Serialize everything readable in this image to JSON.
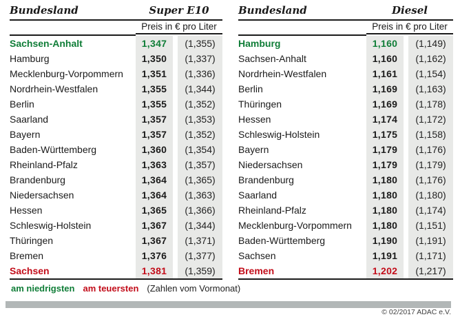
{
  "chart_data": [
    {
      "type": "table",
      "land_header": "Bundesland",
      "fuel": "Super E10",
      "unit_header": "Preis in € pro Liter",
      "rows": [
        {
          "land": "Sachsen-Anhalt",
          "price": "1,347",
          "prev": "(1,355)",
          "mark": "lowest"
        },
        {
          "land": "Hamburg",
          "price": "1,350",
          "prev": "(1,337)"
        },
        {
          "land": "Mecklenburg-Vorpommern",
          "price": "1,351",
          "prev": "(1,336)"
        },
        {
          "land": "Nordrhein-Westfalen",
          "price": "1,355",
          "prev": "(1,344)"
        },
        {
          "land": "Berlin",
          "price": "1,355",
          "prev": "(1,352)"
        },
        {
          "land": "Saarland",
          "price": "1,357",
          "prev": "(1,353)"
        },
        {
          "land": "Bayern",
          "price": "1,357",
          "prev": "(1,352)"
        },
        {
          "land": "Baden-Württemberg",
          "price": "1,360",
          "prev": "(1,354)"
        },
        {
          "land": "Rheinland-Pfalz",
          "price": "1,363",
          "prev": "(1,357)"
        },
        {
          "land": "Brandenburg",
          "price": "1,364",
          "prev": "(1,365)"
        },
        {
          "land": "Niedersachsen",
          "price": "1,364",
          "prev": "(1,363)"
        },
        {
          "land": "Hessen",
          "price": "1,365",
          "prev": "(1,366)"
        },
        {
          "land": "Schleswig-Holstein",
          "price": "1,367",
          "prev": "(1,344)"
        },
        {
          "land": "Thüringen",
          "price": "1,367",
          "prev": "(1,371)"
        },
        {
          "land": "Bremen",
          "price": "1,376",
          "prev": "(1,377)"
        },
        {
          "land": "Sachsen",
          "price": "1,381",
          "prev": "(1,359)",
          "mark": "highest"
        }
      ]
    },
    {
      "type": "table",
      "land_header": "Bundesland",
      "fuel": "Diesel",
      "unit_header": "Preis in € pro Liter",
      "rows": [
        {
          "land": "Hamburg",
          "price": "1,160",
          "prev": "(1,149)",
          "mark": "lowest"
        },
        {
          "land": "Sachsen-Anhalt",
          "price": "1,160",
          "prev": "(1,162)"
        },
        {
          "land": "Nordrhein-Westfalen",
          "price": "1,161",
          "prev": "(1,154)"
        },
        {
          "land": "Berlin",
          "price": "1,169",
          "prev": "(1,163)"
        },
        {
          "land": "Thüringen",
          "price": "1,169",
          "prev": "(1,178)"
        },
        {
          "land": "Hessen",
          "price": "1,174",
          "prev": "(1,172)"
        },
        {
          "land": "Schleswig-Holstein",
          "price": "1,175",
          "prev": "(1,158)"
        },
        {
          "land": "Bayern",
          "price": "1,179",
          "prev": "(1,176)"
        },
        {
          "land": "Niedersachsen",
          "price": "1,179",
          "prev": "(1,179)"
        },
        {
          "land": "Brandenburg",
          "price": "1,180",
          "prev": "(1,176)"
        },
        {
          "land": "Saarland",
          "price": "1,180",
          "prev": "(1,180)"
        },
        {
          "land": "Rheinland-Pfalz",
          "price": "1,180",
          "prev": "(1,174)"
        },
        {
          "land": "Mecklenburg-Vorpommern",
          "price": "1,180",
          "prev": "(1,151)"
        },
        {
          "land": "Baden-Württemberg",
          "price": "1,190",
          "prev": "(1,191)"
        },
        {
          "land": "Sachsen",
          "price": "1,191",
          "prev": "(1,171)"
        },
        {
          "land": "Bremen",
          "price": "1,202",
          "prev": "(1,217)",
          "mark": "highest"
        }
      ]
    }
  ],
  "legend": {
    "lowest_label": "am niedrigsten",
    "highest_label": "am teuersten",
    "note": "(Zahlen vom Vormonat)"
  },
  "footer": {
    "copyright": "© 02/2017 ADAC e.V."
  },
  "colors": {
    "green": "#0f7d37",
    "red": "#c20d1a",
    "column_band": "#e8e9e7",
    "footer_bar": "#b2b7b7"
  }
}
